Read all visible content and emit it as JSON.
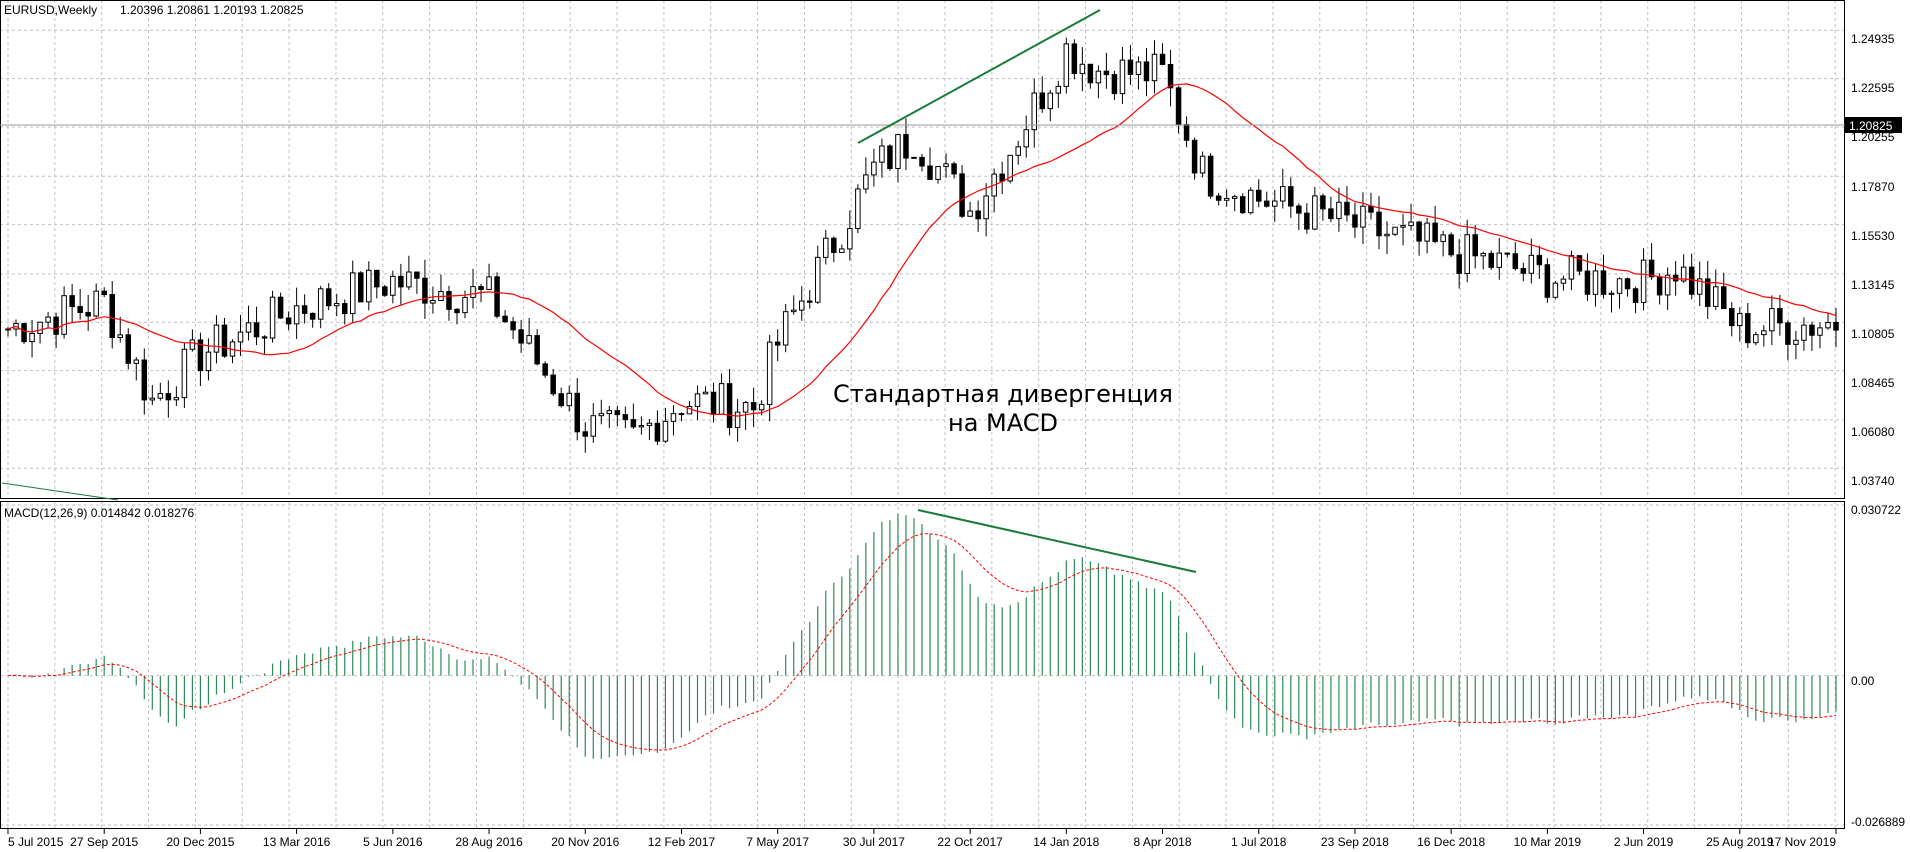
{
  "chart_data": [
    {
      "type": "candlestick",
      "title": "EURUSD,Weekly",
      "ohlc_header": "1.20396 1.20861 1.20193 1.20825",
      "current_price_label": "1.20825",
      "ylim": [
        1.024,
        1.263
      ],
      "y_ticks": [
        "1.24935",
        "1.22595",
        "1.20255",
        "1.17870",
        "1.15530",
        "1.13145",
        "1.10805",
        "1.08465",
        "1.06080",
        "1.03740"
      ],
      "x_ticks": [
        "5 Jul 2015",
        "27 Sep 2015",
        "20 Dec 2015",
        "13 Mar 2016",
        "5 Jun 2016",
        "28 Aug 2016",
        "20 Nov 2016",
        "12 Feb 2017",
        "7 May 2017",
        "30 Jul 2017",
        "22 Oct 2017",
        "14 Jan 2018",
        "8 Apr 2018",
        "1 Jul 2018",
        "23 Sep 2018",
        "16 Dec 2018",
        "10 Mar 2019",
        "2 Jun 2019",
        "25 Aug 2019",
        "17 Nov 2019"
      ],
      "close_anchors": [
        [
          "5 Jul 2015",
          1.105
        ],
        [
          "27 Sep 2015",
          1.118
        ],
        [
          "8 Nov 2015",
          1.07
        ],
        [
          "20 Dec 2015",
          1.093
        ],
        [
          "13 Mar 2016",
          1.115
        ],
        [
          "5 Jun 2016",
          1.128
        ],
        [
          "28 Aug 2016",
          1.12
        ],
        [
          "20 Nov 2016",
          1.058
        ],
        [
          "1 Jan 2017",
          1.052
        ],
        [
          "12 Feb 2017",
          1.07
        ],
        [
          "16 Apr 2017",
          1.067
        ],
        [
          "7 May 2017",
          1.098
        ],
        [
          "30 Jul 2017",
          1.182
        ],
        [
          "3 Sep 2017",
          1.198
        ],
        [
          "22 Oct 2017",
          1.162
        ],
        [
          "26 Nov 2017",
          1.192
        ],
        [
          "14 Jan 2018",
          1.24
        ],
        [
          "11 Feb 2018",
          1.23
        ],
        [
          "8 Apr 2018",
          1.228
        ],
        [
          "13 May 2018",
          1.18
        ],
        [
          "1 Jul 2018",
          1.168
        ],
        [
          "23 Sep 2018",
          1.155
        ],
        [
          "16 Dec 2018",
          1.142
        ],
        [
          "10 Mar 2019",
          1.13
        ],
        [
          "2 Jun 2019",
          1.128
        ],
        [
          "30 Jun 2019",
          1.135
        ],
        [
          "25 Aug 2019",
          1.105
        ],
        [
          "17 Nov 2019",
          1.108
        ],
        [
          "31 Dec 2019",
          1.11
        ]
      ],
      "moving_average_color": "#ff0000",
      "annotation": [
        "Стандартная дивергенция",
        "на MACD"
      ],
      "trendlines_color": "#1a7a3a"
    },
    {
      "type": "macd",
      "label": "MACD(12,26,9) 0.014842 0.018276",
      "ylim": [
        -0.026889,
        0.030722
      ],
      "y_ticks": [
        "0.030722",
        "0.00",
        "-0.026889"
      ],
      "histogram_color": "#2e8b57",
      "signal_color": "#ff0000"
    }
  ],
  "colors": {
    "grid": "#c0c0c0",
    "frame": "#000000",
    "bull": "#ffffff",
    "bear": "#000000"
  }
}
